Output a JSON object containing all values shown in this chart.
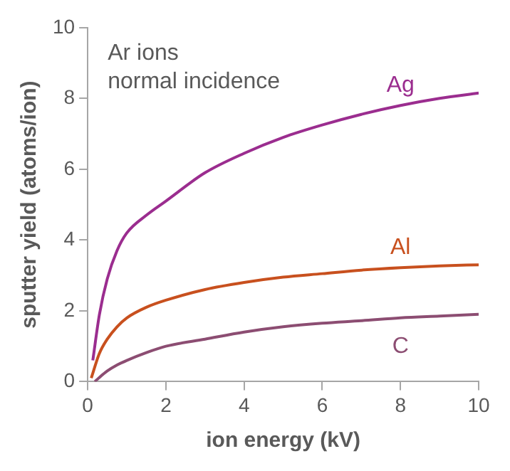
{
  "chart_data": {
    "type": "line",
    "xlabel": "ion energy (kV)",
    "ylabel": "sputter yield (atoms/ion)",
    "annotations": [
      "Ar ions\nnormal incidence"
    ],
    "xlim": [
      0,
      10
    ],
    "ylim": [
      0,
      10
    ],
    "xticks": [
      0,
      2,
      4,
      6,
      8,
      10
    ],
    "yticks": [
      0,
      2,
      4,
      6,
      8,
      10
    ],
    "grid": false,
    "legend": false,
    "marker": "none",
    "line_style": "solid",
    "series": [
      {
        "name": "Ag",
        "color": "#9b2d8f",
        "x": [
          0.13,
          0.3,
          0.5,
          0.75,
          1,
          1.5,
          2,
          3,
          4,
          5,
          6,
          7,
          8,
          9,
          10
        ],
        "values": [
          0.6,
          1.9,
          2.9,
          3.7,
          4.2,
          4.7,
          5.1,
          5.9,
          6.45,
          6.9,
          7.25,
          7.55,
          7.8,
          8.0,
          8.15
        ]
      },
      {
        "name": "Al",
        "color": "#c8501e",
        "x": [
          0.09,
          0.3,
          0.5,
          0.75,
          1,
          1.5,
          2,
          3,
          4,
          5,
          6,
          7,
          8,
          9,
          10
        ],
        "values": [
          0.1,
          0.8,
          1.2,
          1.55,
          1.8,
          2.1,
          2.3,
          2.6,
          2.8,
          2.95,
          3.05,
          3.15,
          3.22,
          3.27,
          3.3
        ]
      },
      {
        "name": "C",
        "color": "#8c4d72",
        "x": [
          0.18,
          0.3,
          0.5,
          0.75,
          1,
          1.5,
          2,
          3,
          4,
          5,
          6,
          7,
          8,
          9,
          10
        ],
        "values": [
          0,
          0.12,
          0.3,
          0.47,
          0.6,
          0.82,
          1.0,
          1.2,
          1.4,
          1.55,
          1.65,
          1.72,
          1.8,
          1.85,
          1.9
        ]
      }
    ]
  }
}
